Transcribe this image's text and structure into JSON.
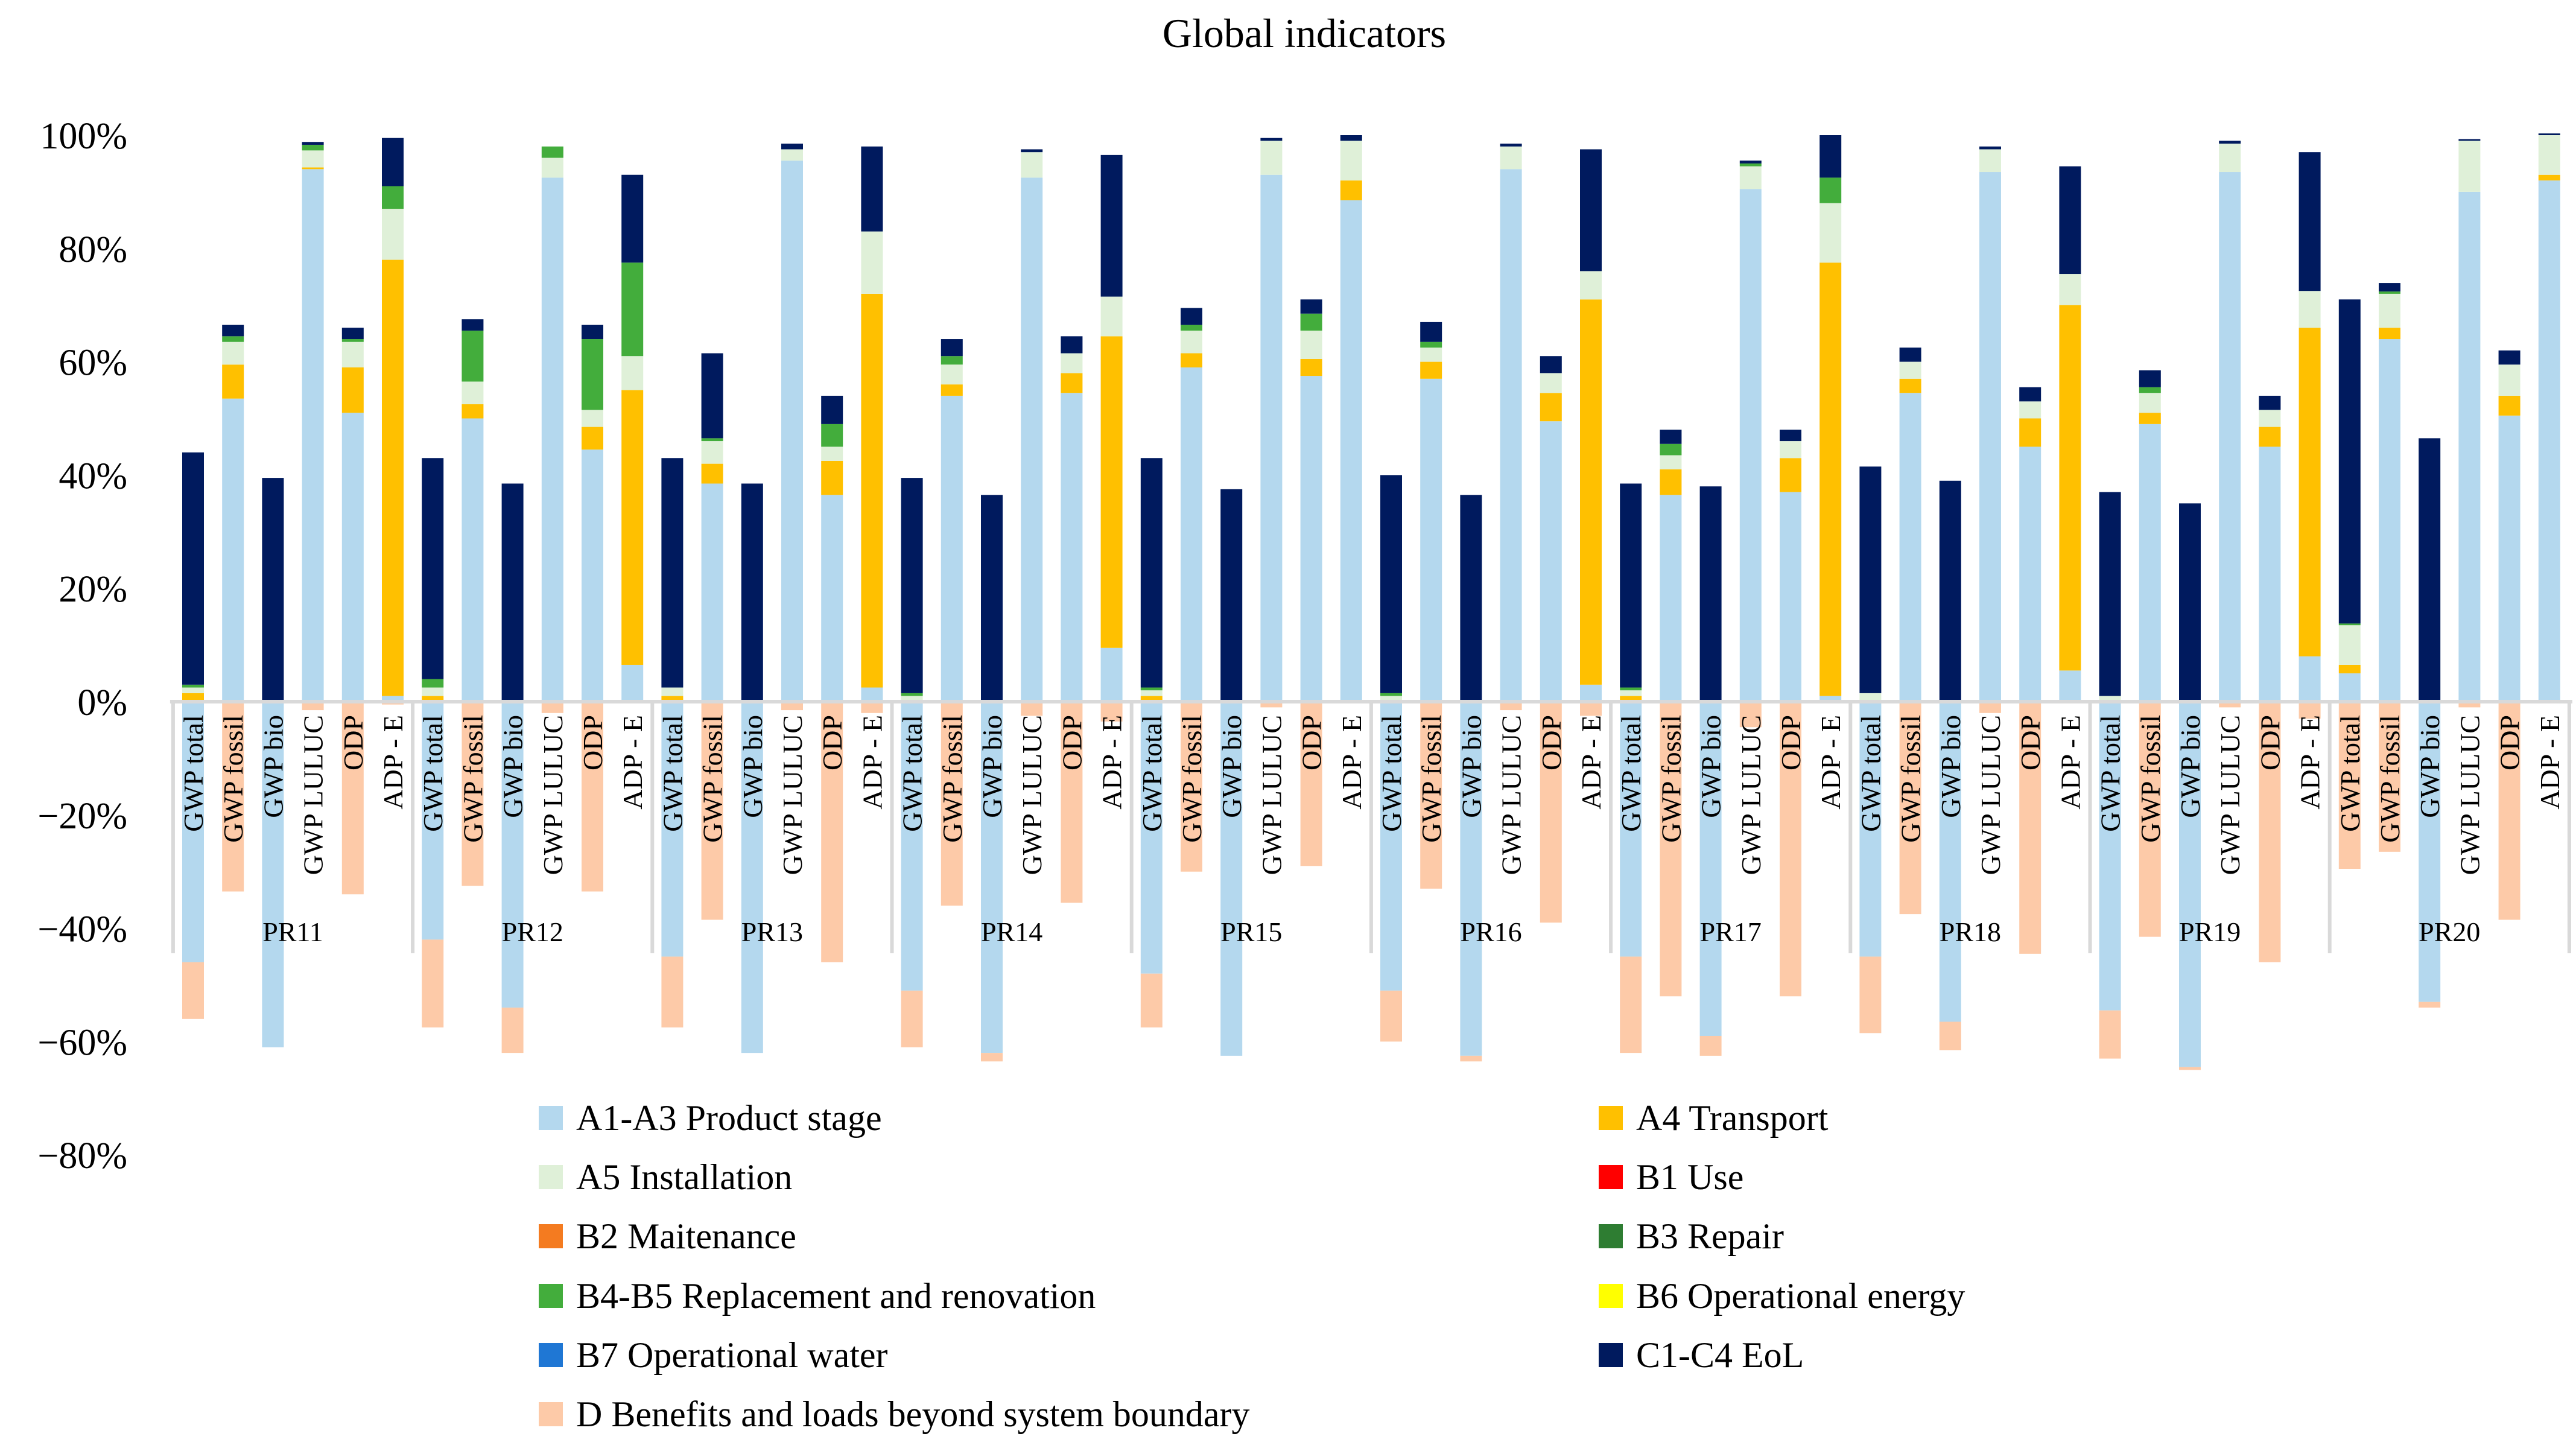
{
  "chart_data": {
    "type": "bar",
    "stacked": true,
    "title": "Global indicators",
    "xlabel": "",
    "ylabel": "",
    "ylim": [
      -80,
      100
    ],
    "yticks": [
      100,
      80,
      60,
      40,
      20,
      0,
      -20,
      -40,
      -60,
      -80
    ],
    "ytick_labels": [
      "100%",
      "80%",
      "60%",
      "40%",
      "20%",
      "0%",
      "−20%",
      "−40%",
      "−60%",
      "−80%"
    ],
    "grid": false,
    "legend_position": "bottom",
    "groups": [
      "PR11",
      "PR12",
      "PR13",
      "PR14",
      "PR15",
      "PR16",
      "PR17",
      "PR18",
      "PR19",
      "PR20"
    ],
    "indicators": [
      "GWP total",
      "GWP fossil",
      "GWP bio",
      "GWP LULUC",
      "ODP",
      "ADP - E"
    ],
    "series": [
      {
        "name": "A1-A3 Product stage",
        "color": "#b4d8ee",
        "values": [
          -46,
          53.5,
          -61,
          94,
          51,
          1,
          -42,
          50,
          -54,
          92.5,
          44.5,
          6.5,
          -45,
          38.5,
          -62,
          95.5,
          36.5,
          2.5,
          -51,
          54,
          -62,
          92.5,
          54.5,
          9.5,
          -48,
          59,
          -62.5,
          93,
          57.5,
          88.5,
          -51,
          57,
          -62.5,
          94,
          49.5,
          3,
          -45,
          36.5,
          -59,
          90.5,
          37,
          1,
          -45,
          54.5,
          -56.5,
          93.5,
          45,
          5.5,
          -54.5,
          49,
          -64.5,
          93.5,
          45,
          8,
          5,
          64,
          -53,
          90,
          50.5,
          92
        ]
      },
      {
        "name": "A4 Transport",
        "color": "#ffc000",
        "values": [
          1.5,
          6,
          0,
          0.3,
          8,
          77,
          1,
          2.5,
          0,
          0,
          4,
          48.5,
          1,
          3.5,
          0,
          0,
          6,
          69.5,
          0,
          2,
          0,
          0,
          3.5,
          55,
          1,
          2.5,
          0,
          0,
          3,
          3.5,
          0,
          3,
          0,
          0,
          5,
          68,
          1,
          4.5,
          0,
          0,
          6,
          76.5,
          0,
          2.5,
          0,
          0,
          5,
          64.5,
          0,
          2,
          0,
          0,
          3.5,
          58,
          1.5,
          2,
          0,
          0,
          3.5,
          1
        ]
      },
      {
        "name": "A5 Installation",
        "color": "#dff0d8",
        "values": [
          1,
          4,
          0,
          3,
          4.5,
          9,
          1.5,
          4,
          0,
          3.5,
          3,
          6,
          1.5,
          4,
          0,
          2,
          2.5,
          11,
          1,
          3.5,
          0,
          4.5,
          3.5,
          7,
          1,
          4,
          0,
          6,
          5,
          7,
          1,
          2.5,
          0,
          4,
          3.5,
          5,
          1,
          2.5,
          0,
          4,
          3,
          10.5,
          1.5,
          3,
          0,
          4,
          3,
          5.5,
          1,
          3.5,
          0,
          5,
          3,
          6.5,
          7,
          6,
          0,
          9,
          5.5,
          7
        ]
      },
      {
        "name": "B1 Use",
        "color": "#ff0000",
        "values": [
          0,
          0,
          0,
          0,
          0,
          0,
          0,
          0,
          0,
          0,
          0,
          0,
          0,
          0,
          0,
          0,
          0,
          0,
          0,
          0,
          0,
          0,
          0,
          0,
          0,
          0,
          0,
          0,
          0,
          0,
          0,
          0,
          0,
          0,
          0,
          0,
          0,
          0,
          0,
          0,
          0,
          0,
          0,
          0,
          0,
          0,
          0,
          0,
          0,
          0,
          0,
          0,
          0,
          0,
          0,
          0,
          0,
          0,
          0,
          0
        ]
      },
      {
        "name": "B2 Maitenance",
        "color": "#f47b20",
        "values": [
          0,
          0,
          0,
          0,
          0,
          0,
          0,
          0,
          0,
          0,
          0,
          0,
          0,
          0,
          0,
          0,
          0,
          0,
          0,
          0,
          0,
          0,
          0,
          0,
          0,
          0,
          0,
          0,
          0,
          0,
          0,
          0,
          0,
          0,
          0,
          0,
          0,
          0,
          0,
          0,
          0,
          0,
          0,
          0,
          0,
          0,
          0,
          0,
          0,
          0,
          0,
          0,
          0,
          0,
          0,
          0,
          0,
          0,
          0,
          0
        ]
      },
      {
        "name": "B3 Repair",
        "color": "#2e7d32",
        "values": [
          0,
          0,
          0,
          0,
          0,
          0,
          0,
          0,
          0,
          0,
          0,
          0,
          0,
          0,
          0,
          0,
          0,
          0,
          0,
          0,
          0,
          0,
          0,
          0,
          0,
          0,
          0,
          0,
          0,
          0,
          0,
          0,
          0,
          0,
          0,
          0,
          0,
          0,
          0,
          0,
          0,
          0,
          0,
          0,
          0,
          0,
          0,
          0,
          0,
          0,
          0,
          0,
          0,
          0,
          0,
          0,
          0,
          0,
          0,
          0
        ]
      },
      {
        "name": "B4-B5 Replacement and renovation",
        "color": "#43ad3c",
        "values": [
          0.5,
          1,
          0,
          1,
          0.5,
          4,
          1.5,
          9,
          0,
          2,
          12.5,
          16.5,
          0,
          0.5,
          0,
          0,
          4,
          0,
          0.5,
          1.5,
          0,
          0,
          0,
          0,
          0.5,
          1,
          0,
          0,
          3,
          0,
          0.5,
          1,
          0,
          0,
          0,
          0,
          0.5,
          2,
          0,
          0.5,
          0,
          4.5,
          0,
          0,
          0,
          0,
          0,
          0,
          0,
          1,
          0,
          0,
          0,
          0,
          0.3,
          0.4,
          0,
          0,
          0,
          0
        ]
      },
      {
        "name": "B6 Operational energy",
        "color": "#ffff00",
        "values": [
          0,
          0,
          0,
          0,
          0,
          0,
          0,
          0,
          0,
          0,
          0,
          0,
          0,
          0,
          0,
          0,
          0,
          0,
          0,
          0,
          0,
          0,
          0,
          0,
          0,
          0,
          0,
          0,
          0,
          0,
          0,
          0,
          0,
          0,
          0,
          0,
          0,
          0,
          0,
          0,
          0,
          0,
          0,
          0,
          0,
          0,
          0,
          0,
          0,
          0,
          0,
          0,
          0,
          0,
          0,
          0,
          0,
          0,
          0,
          0
        ]
      },
      {
        "name": "B7 Operational water",
        "color": "#1f77d4",
        "values": [
          0,
          0,
          0,
          0,
          0,
          0,
          0,
          0,
          0,
          0,
          0,
          0,
          0,
          0,
          0,
          0,
          0,
          0,
          0,
          0,
          0,
          0,
          0,
          0,
          0,
          0,
          0,
          0,
          0,
          0,
          0,
          0,
          0,
          0,
          0,
          0,
          0,
          0,
          0,
          0,
          0,
          0,
          0,
          0,
          0,
          0,
          0,
          0,
          0,
          0,
          0,
          0,
          0,
          0,
          0,
          0,
          0,
          0,
          0,
          0
        ]
      },
      {
        "name": "C1-C4 EoL",
        "color": "#001a5e",
        "values": [
          41,
          2,
          39.5,
          0.5,
          2,
          8.5,
          39,
          2,
          38.5,
          0,
          2.5,
          15.5,
          40.5,
          15,
          38.5,
          1,
          5,
          15,
          38,
          3,
          36.5,
          0.5,
          3,
          25,
          40.5,
          3,
          37.5,
          0.5,
          2.5,
          1,
          38.5,
          3.5,
          36.5,
          0.5,
          3,
          21.5,
          36,
          2.5,
          38,
          0.5,
          2,
          7.5,
          40,
          2.5,
          39,
          0.5,
          2.5,
          19,
          36,
          3,
          35,
          0.5,
          2.5,
          24.5,
          57.2,
          1.5,
          46.5,
          0.3,
          2.5,
          0.3
        ]
      },
      {
        "name": "D Benefits and loads beyond system boundary",
        "color": "#fdcaa8",
        "values": [
          -10,
          -33.5,
          0,
          -1.5,
          -34,
          -0.5,
          -15.5,
          -32.5,
          -8,
          -2,
          -33.5,
          0,
          -12.5,
          -38.5,
          0,
          -1.5,
          -46,
          -2,
          -10,
          -36,
          -1.5,
          -2.5,
          -35.5,
          -3.5,
          -9.5,
          -30,
          0,
          -1,
          -29,
          0,
          -9,
          -33,
          -1,
          -1.5,
          -39,
          -2.5,
          -17,
          -52,
          -3.5,
          -4.5,
          -52,
          0,
          -13.5,
          -37.5,
          -5,
          -2,
          -44.5,
          0,
          -8.5,
          -41.5,
          -0.5,
          -1,
          -46,
          -3,
          -29.5,
          -26.5,
          -1,
          -1,
          -38.5,
          0
        ]
      }
    ]
  }
}
